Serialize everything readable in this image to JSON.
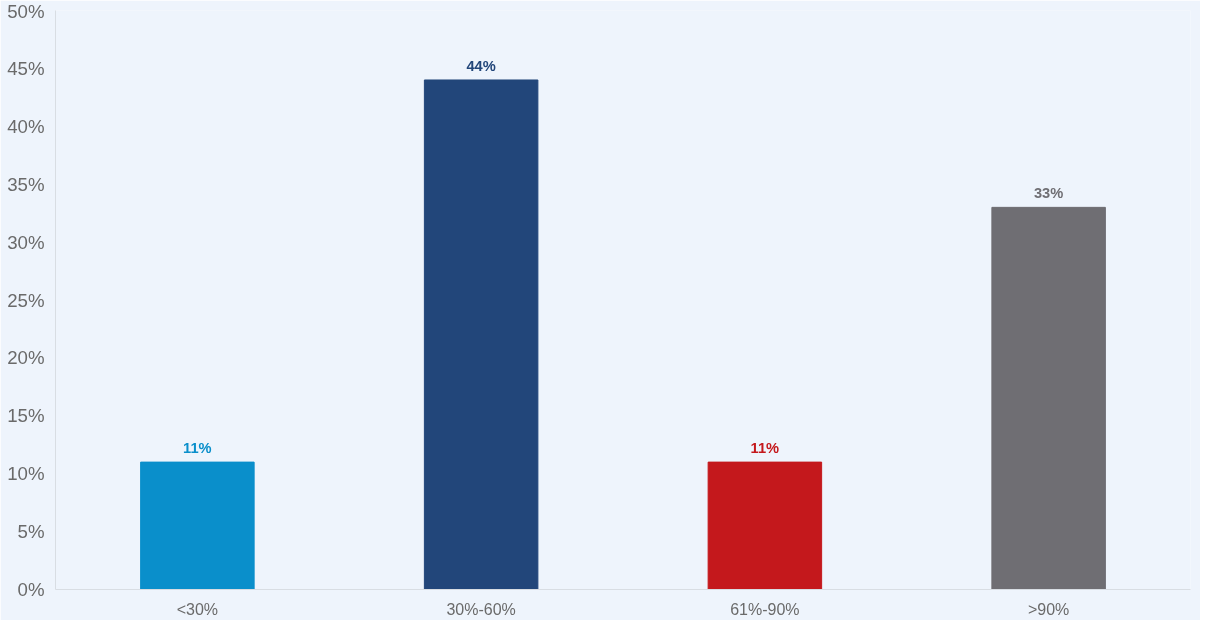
{
  "chart_data": {
    "type": "bar",
    "categories": [
      "<30%",
      "30%-60%",
      "61%-90%",
      ">90%"
    ],
    "values": [
      11,
      44,
      11,
      33
    ],
    "colors": [
      "#0a8fcb",
      "#22467a",
      "#c4181c",
      "#6f6e73"
    ],
    "value_labels": [
      "11%",
      "44%",
      "11%",
      "33%"
    ],
    "ylim": [
      0,
      50
    ],
    "yticks": [
      {
        "value": 0,
        "label": "0%"
      },
      {
        "value": 5,
        "label": "5%"
      },
      {
        "value": 10,
        "label": "10%"
      },
      {
        "value": 15,
        "label": "15%"
      },
      {
        "value": 20,
        "label": "20%"
      },
      {
        "value": 25,
        "label": "25%"
      },
      {
        "value": 30,
        "label": "30%"
      },
      {
        "value": 35,
        "label": "35%"
      },
      {
        "value": 40,
        "label": "40%"
      },
      {
        "value": 45,
        "label": "45%"
      },
      {
        "value": 50,
        "label": "50%"
      }
    ],
    "grid": false
  }
}
